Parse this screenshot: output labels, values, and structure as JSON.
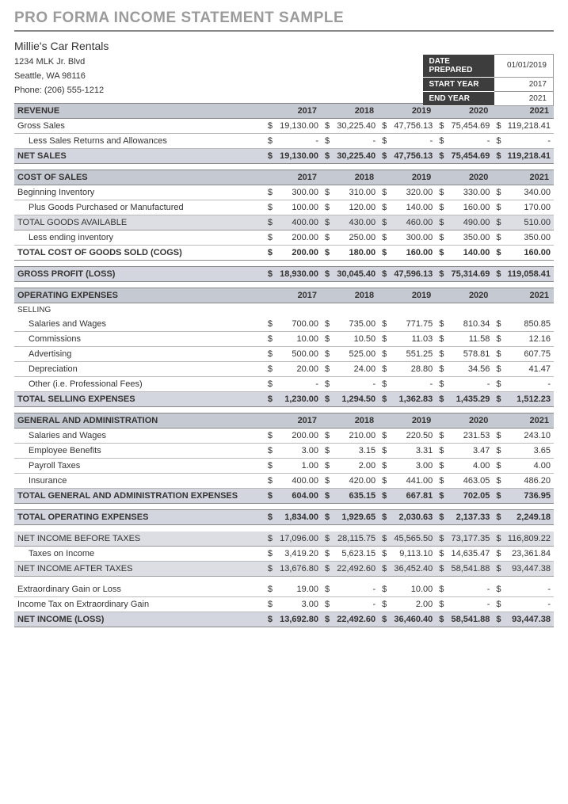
{
  "title": "PRO FORMA INCOME STATEMENT SAMPLE",
  "company": {
    "name": "Millie's Car Rentals",
    "address1": "1234 MLK Jr. Blvd",
    "address2": "Seattle, WA 98116",
    "phone": "Phone: (206) 555-1212"
  },
  "meta": {
    "datePreparedLabel": "DATE PREPARED",
    "datePrepared": "01/01/2019",
    "startYearLabel": "START YEAR",
    "startYear": "2017",
    "endYearLabel": "END YEAR",
    "endYear": "2021"
  },
  "years": [
    "2017",
    "2018",
    "2019",
    "2020",
    "2021"
  ],
  "cur": "$",
  "dash": "-",
  "labels": {
    "revenue": "REVENUE",
    "grossSales": "Gross Sales",
    "lessReturns": "Less Sales Returns and Allowances",
    "netSales": "NET SALES",
    "costOfSales": "COST OF SALES",
    "begInv": "Beginning Inventory",
    "plusGoods": "Plus Goods Purchased or Manufactured",
    "totalGoods": "TOTAL GOODS AVAILABLE",
    "lessEndInv": "Less ending inventory",
    "cogs": "TOTAL COST OF GOODS SOLD (COGS)",
    "grossProfit": "GROSS PROFIT (LOSS)",
    "opEx": "OPERATING EXPENSES",
    "selling": "SELLING",
    "salWages": "Salaries and Wages",
    "commissions": "Commissions",
    "advertising": "Advertising",
    "depreciation": "Depreciation",
    "other": "Other  (i.e. Professional Fees)",
    "totSelling": "TOTAL SELLING EXPENSES",
    "genAdmin": "GENERAL AND ADMINISTRATION",
    "empBenefits": "Employee Benefits",
    "payrollTax": "Payroll Taxes",
    "insurance": "Insurance",
    "totGA": "TOTAL GENERAL AND ADMINISTRATION EXPENSES",
    "totOpEx": "TOTAL OPERATING EXPENSES",
    "niBefore": "NET INCOME BEFORE TAXES",
    "taxes": "Taxes on Income",
    "niAfter": "NET INCOME AFTER TAXES",
    "extraGain": "Extraordinary Gain or Loss",
    "extraTax": "Income Tax on Extraordinary Gain",
    "netIncome": "NET INCOME (LOSS)"
  },
  "v": {
    "grossSales": [
      "19,130.00",
      "30,225.40",
      "47,756.13",
      "75,454.69",
      "119,218.41"
    ],
    "lessReturns": [
      "-",
      "-",
      "-",
      "-",
      "-"
    ],
    "netSales": [
      "19,130.00",
      "30,225.40",
      "47,756.13",
      "75,454.69",
      "119,218.41"
    ],
    "begInv": [
      "300.00",
      "310.00",
      "320.00",
      "330.00",
      "340.00"
    ],
    "plusGoods": [
      "100.00",
      "120.00",
      "140.00",
      "160.00",
      "170.00"
    ],
    "totalGoods": [
      "400.00",
      "430.00",
      "460.00",
      "490.00",
      "510.00"
    ],
    "lessEndInv": [
      "200.00",
      "250.00",
      "300.00",
      "350.00",
      "350.00"
    ],
    "cogs": [
      "200.00",
      "180.00",
      "160.00",
      "140.00",
      "160.00"
    ],
    "grossProfit": [
      "18,930.00",
      "30,045.40",
      "47,596.13",
      "75,314.69",
      "119,058.41"
    ],
    "salWages": [
      "700.00",
      "735.00",
      "771.75",
      "810.34",
      "850.85"
    ],
    "commissions": [
      "10.00",
      "10.50",
      "11.03",
      "11.58",
      "12.16"
    ],
    "advertising": [
      "500.00",
      "525.00",
      "551.25",
      "578.81",
      "607.75"
    ],
    "depreciation": [
      "20.00",
      "24.00",
      "28.80",
      "34.56",
      "41.47"
    ],
    "other": [
      "-",
      "-",
      "-",
      "-",
      "-"
    ],
    "totSelling": [
      "1,230.00",
      "1,294.50",
      "1,362.83",
      "1,435.29",
      "1,512.23"
    ],
    "gaSalWages": [
      "200.00",
      "210.00",
      "220.50",
      "231.53",
      "243.10"
    ],
    "empBenefits": [
      "3.00",
      "3.15",
      "3.31",
      "3.47",
      "3.65"
    ],
    "payrollTax": [
      "1.00",
      "2.00",
      "3.00",
      "4.00",
      "4.00"
    ],
    "insurance": [
      "400.00",
      "420.00",
      "441.00",
      "463.05",
      "486.20"
    ],
    "totGA": [
      "604.00",
      "635.15",
      "667.81",
      "702.05",
      "736.95"
    ],
    "totOpEx": [
      "1,834.00",
      "1,929.65",
      "2,030.63",
      "2,137.33",
      "2,249.18"
    ],
    "niBefore": [
      "17,096.00",
      "28,115.75",
      "45,565.50",
      "73,177.35",
      "116,809.22"
    ],
    "taxes": [
      "3,419.20",
      "5,623.15",
      "9,113.10",
      "14,635.47",
      "23,361.84"
    ],
    "niAfter": [
      "13,676.80",
      "22,492.60",
      "36,452.40",
      "58,541.88",
      "93,447.38"
    ],
    "extraGain": [
      "19.00",
      "-",
      "10.00",
      "-",
      "-"
    ],
    "extraTax": [
      "3.00",
      "-",
      "2.00",
      "-",
      "-"
    ],
    "netIncome": [
      "13,692.80",
      "22,492.60",
      "36,460.40",
      "58,541.88",
      "93,447.38"
    ]
  }
}
